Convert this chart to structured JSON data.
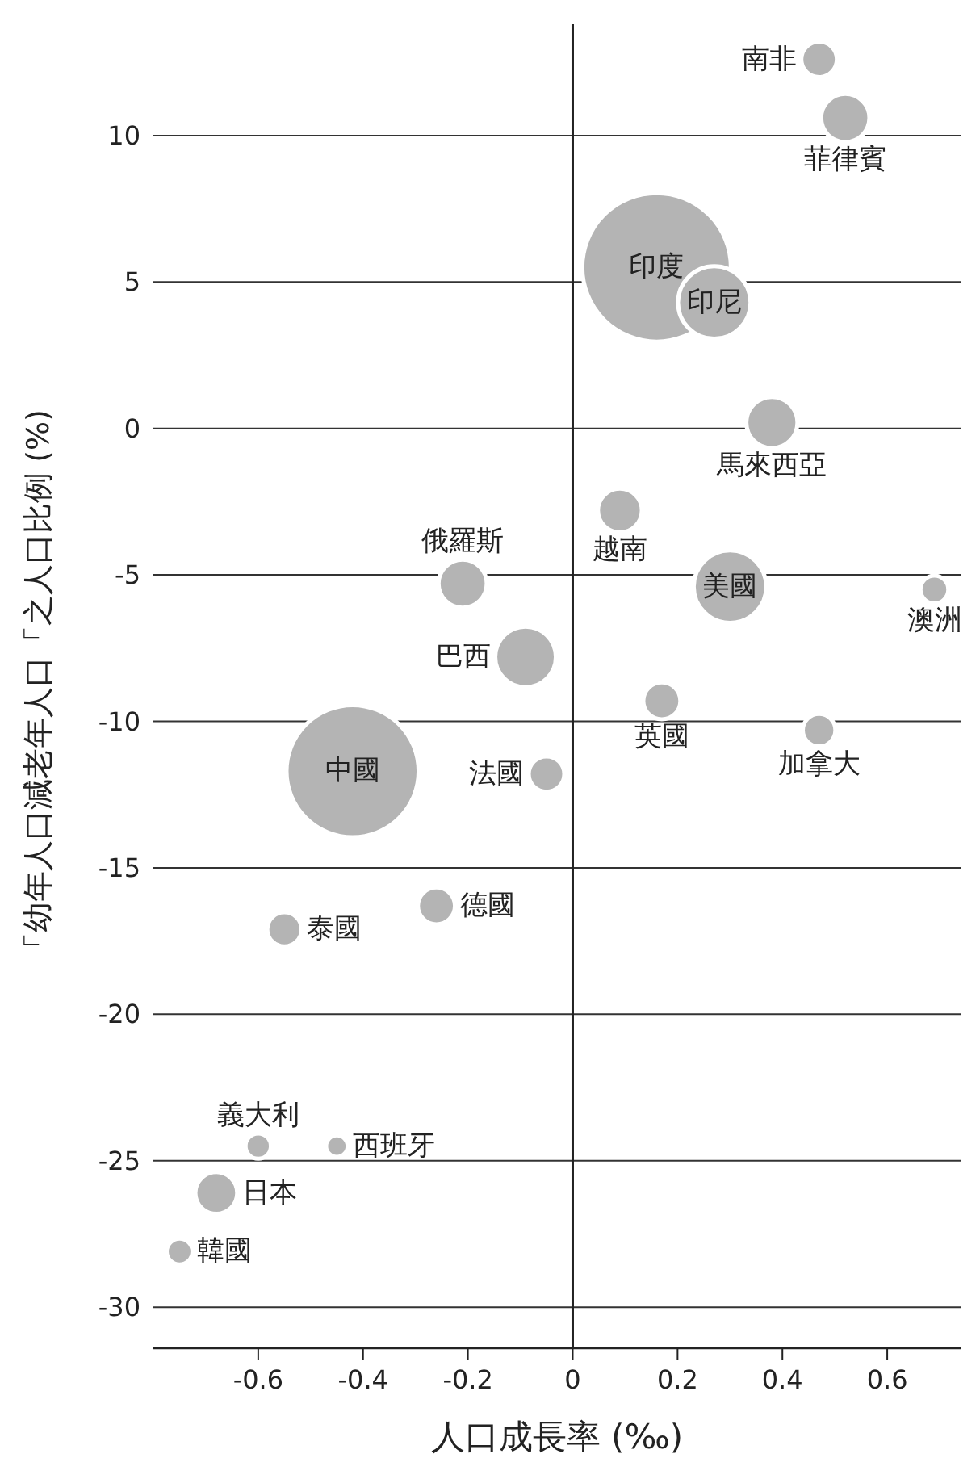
{
  "chart_data": {
    "type": "bubble",
    "xlabel": "人口成長率 (‰)",
    "ylabel": "「幼年人口減老年人口「之人口比例 (%)",
    "xlim": [
      -0.8,
      0.74
    ],
    "xticks": [
      -0.6,
      -0.4,
      -0.2,
      0,
      0.2,
      0.4,
      0.6
    ],
    "ylim": [
      -31.4,
      13.8
    ],
    "yticks": [
      -30,
      -25,
      -20,
      -15,
      -10,
      -5,
      0,
      5,
      10
    ],
    "grid": "y",
    "ref_lines": [
      {
        "axis": "x",
        "value": 0,
        "color": "#222222"
      }
    ],
    "series": [
      {
        "name": "韓國",
        "color": "#b4b4b4",
        "x": [
          -0.75
        ],
        "values": [
          -28.1
        ],
        "sizes": [
          0.03
        ]
      },
      {
        "name": "日本",
        "color": "#b4b4b4",
        "x": [
          -0.68
        ],
        "values": [
          -26.1
        ],
        "sizes": [
          0.079
        ]
      },
      {
        "name": "義大利",
        "color": "#b4b4b4",
        "x": [
          -0.6
        ],
        "values": [
          -24.5
        ],
        "sizes": [
          0.029
        ]
      },
      {
        "name": "西班牙",
        "color": "#b4b4b4",
        "x": [
          -0.45
        ],
        "values": [
          -24.5
        ],
        "sizes": [
          0.021
        ]
      },
      {
        "name": "泰國",
        "color": "#b4b4b4",
        "x": [
          -0.55
        ],
        "values": [
          -17.1
        ],
        "sizes": [
          0.053
        ]
      },
      {
        "name": "中國",
        "color": "#b4b4b4",
        "x": [
          -0.42
        ],
        "values": [
          -11.7
        ],
        "sizes": [
          0.79
        ]
      },
      {
        "name": "德國",
        "color": "#b4b4b4",
        "x": [
          -0.26
        ],
        "values": [
          -16.3
        ],
        "sizes": [
          0.062
        ]
      },
      {
        "name": "俄羅斯",
        "color": "#b4b4b4",
        "x": [
          -0.21
        ],
        "values": [
          -5.3
        ],
        "sizes": [
          0.105
        ]
      },
      {
        "name": "巴西",
        "color": "#b4b4b4",
        "x": [
          -0.09
        ],
        "values": [
          -7.8
        ],
        "sizes": [
          0.166
        ]
      },
      {
        "name": "法國",
        "color": "#b4b4b4",
        "x": [
          -0.05
        ],
        "values": [
          -11.8
        ],
        "sizes": [
          0.057
        ]
      },
      {
        "name": "越南",
        "color": "#b4b4b4",
        "x": [
          0.09
        ],
        "values": [
          -2.8
        ],
        "sizes": [
          0.087
        ]
      },
      {
        "name": "英國",
        "color": "#b4b4b4",
        "x": [
          0.17
        ],
        "values": [
          -9.3
        ],
        "sizes": [
          0.062
        ]
      },
      {
        "name": "印度",
        "color": "#b4b4b4",
        "x": [
          0.16
        ],
        "values": [
          5.5
        ],
        "sizes": [
          1
        ]
      },
      {
        "name": "印尼",
        "color": "#b4b4b4",
        "x": [
          0.27
        ],
        "values": [
          4.3
        ],
        "sizes": [
          0.238
        ]
      },
      {
        "name": "美國",
        "color": "#b4b4b4",
        "x": [
          0.3
        ],
        "values": [
          -5.4
        ],
        "sizes": [
          0.238
        ]
      },
      {
        "name": "馬來西亞",
        "color": "#b4b4b4",
        "x": [
          0.38
        ],
        "values": [
          0.2
        ],
        "sizes": [
          0.118
        ]
      },
      {
        "name": "南非",
        "color": "#b4b4b4",
        "x": [
          0.47
        ],
        "values": [
          12.6
        ],
        "sizes": [
          0.057
        ]
      },
      {
        "name": "菲律賓",
        "color": "#b4b4b4",
        "x": [
          0.52
        ],
        "values": [
          10.6
        ],
        "sizes": [
          0.105
        ]
      },
      {
        "name": "加拿大",
        "color": "#b4b4b4",
        "x": [
          0.47
        ],
        "values": [
          -10.3
        ],
        "sizes": [
          0.048
        ]
      },
      {
        "name": "澳洲",
        "color": "#b4b4b4",
        "x": [
          0.69
        ],
        "values": [
          -5.5
        ],
        "sizes": [
          0.035
        ]
      }
    ]
  }
}
